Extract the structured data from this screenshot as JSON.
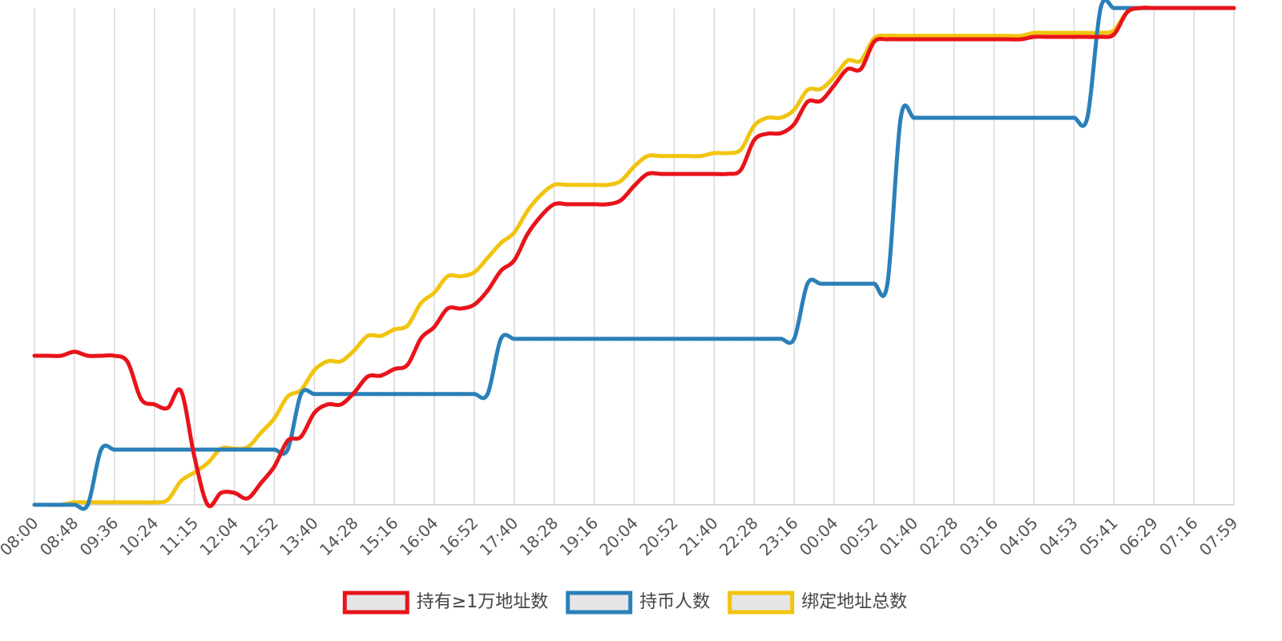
{
  "chart_data": {
    "type": "line",
    "categories": [
      "08:00",
      null,
      null,
      "08:48",
      null,
      null,
      "09:36",
      null,
      null,
      "10:24",
      null,
      null,
      "11:15",
      null,
      null,
      "12:04",
      null,
      null,
      "12:52",
      null,
      null,
      "13:40",
      null,
      null,
      "14:28",
      null,
      null,
      "15:16",
      null,
      null,
      "16:04",
      null,
      null,
      "16:52",
      null,
      null,
      "17:40",
      null,
      null,
      "18:28",
      null,
      null,
      "19:16",
      null,
      null,
      "20:04",
      null,
      null,
      "20:52",
      null,
      null,
      "21:40",
      null,
      null,
      "22:28",
      null,
      null,
      "23:16",
      null,
      null,
      "00:04",
      null,
      null,
      "00:52",
      null,
      null,
      "01:40",
      null,
      null,
      "02:28",
      null,
      null,
      "03:16",
      null,
      null,
      "04:05",
      null,
      null,
      "04:53",
      null,
      null,
      "05:41",
      null,
      null,
      "06:29",
      null,
      null,
      "07:16",
      null,
      null,
      "07:59"
    ],
    "series": [
      {
        "name": "持有≥1万地址数",
        "color": "#e8141b",
        "values": [
          30,
          30,
          30,
          30.8,
          30,
          30,
          30,
          28.7,
          21.3,
          20.2,
          19.5,
          22.9,
          9.7,
          0,
          2.4,
          2.4,
          1.3,
          4.4,
          7.7,
          12.9,
          13.7,
          18.5,
          20.2,
          20.2,
          22.6,
          25.8,
          26,
          27.3,
          28.2,
          33.5,
          35.8,
          39.5,
          39.5,
          40.3,
          43.1,
          47.1,
          49.2,
          54.5,
          58.1,
          60.5,
          60.5,
          60.5,
          60.5,
          60.5,
          61.3,
          64.2,
          66.6,
          66.6,
          66.6,
          66.6,
          66.6,
          66.6,
          66.6,
          67.4,
          73.4,
          74.7,
          74.8,
          76.6,
          81.1,
          81.3,
          84.4,
          87.7,
          87.7,
          93.2,
          93.7,
          93.7,
          93.7,
          93.7,
          93.7,
          93.7,
          93.7,
          93.7,
          93.7,
          93.7,
          93.7,
          94.2,
          94.2,
          94.2,
          94.2,
          94.2,
          94.2,
          94.7,
          99.2,
          100,
          100,
          100,
          100,
          100,
          100,
          100,
          100
        ]
      },
      {
        "name": "持币人数",
        "color": "#2a80b9",
        "values": [
          0,
          0,
          0,
          0,
          0,
          11.1,
          11.1,
          11.1,
          11.1,
          11.1,
          11.1,
          11.1,
          11.1,
          11.1,
          11.1,
          11.1,
          11.1,
          11.1,
          11.1,
          11.1,
          22.3,
          22.3,
          22.3,
          22.3,
          22.3,
          22.3,
          22.3,
          22.3,
          22.3,
          22.3,
          22.3,
          22.3,
          22.3,
          22.3,
          22.3,
          33.4,
          33.4,
          33.4,
          33.4,
          33.4,
          33.4,
          33.4,
          33.4,
          33.4,
          33.4,
          33.4,
          33.4,
          33.4,
          33.4,
          33.4,
          33.4,
          33.4,
          33.4,
          33.4,
          33.4,
          33.4,
          33.4,
          33.4,
          44.5,
          44.5,
          44.5,
          44.5,
          44.5,
          44.5,
          44.5,
          77.9,
          77.9,
          77.9,
          77.9,
          77.9,
          77.9,
          77.9,
          77.9,
          77.9,
          77.9,
          77.9,
          77.9,
          77.9,
          77.9,
          77.9,
          100,
          100,
          100,
          100,
          100,
          100,
          100,
          100,
          100,
          100,
          100
        ]
      },
      {
        "name": "绑定地址总数",
        "color": "#f1c40f",
        "values": [
          0,
          0,
          0,
          0.5,
          0.5,
          0.5,
          0.5,
          0.5,
          0.5,
          0.5,
          1,
          4.8,
          6.5,
          8.4,
          11.3,
          11.3,
          11.6,
          14.5,
          17.4,
          21.8,
          23.1,
          27.1,
          28.9,
          28.9,
          31.1,
          34,
          34,
          35.3,
          36.1,
          40.6,
          42.7,
          46,
          46,
          46.8,
          49.7,
          52.7,
          54.8,
          59.2,
          62.4,
          64.4,
          64.4,
          64.4,
          64.4,
          64.4,
          65.2,
          68.1,
          70.2,
          70.2,
          70.2,
          70.2,
          70.2,
          70.8,
          70.8,
          71.5,
          76.3,
          77.9,
          77.9,
          79.5,
          83.5,
          83.7,
          86.1,
          89.4,
          89.4,
          93.9,
          94.4,
          94.4,
          94.4,
          94.4,
          94.4,
          94.4,
          94.4,
          94.4,
          94.4,
          94.4,
          94.4,
          95,
          95,
          95,
          95,
          95,
          95,
          95.5,
          99.2,
          100,
          100,
          100,
          100,
          100,
          100,
          100,
          100
        ]
      }
    ],
    "ylim": [
      0,
      100
    ],
    "grid": true,
    "legend": "bottom"
  }
}
